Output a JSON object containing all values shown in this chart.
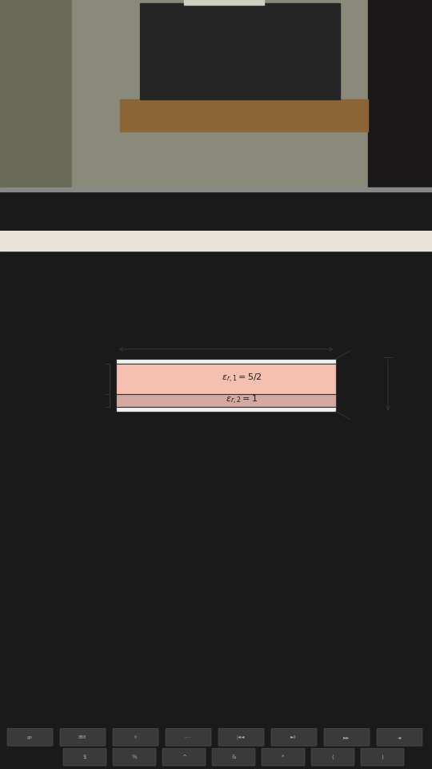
{
  "slab1_color": "#f5c0b0",
  "slab2_color": "#d4a8a0",
  "plate_color": "#e8e8e8",
  "border_color": "#333333",
  "paper_bg": "#f0ece2",
  "screen_bg": "#f0ece2",
  "photo_wall": "#8a8a7a",
  "photo_left": "#6a6a58",
  "photo_printer": "#252525",
  "photo_desk": "#8a6535",
  "photo_item": "#d0cec0",
  "photo_right_dark": "#1a1a1a",
  "laptop_bar": "#1a1a1a",
  "laptop_silver": "#888888",
  "keyboard_bg": "#2d2d2d",
  "key_color": "#3a3a3a"
}
